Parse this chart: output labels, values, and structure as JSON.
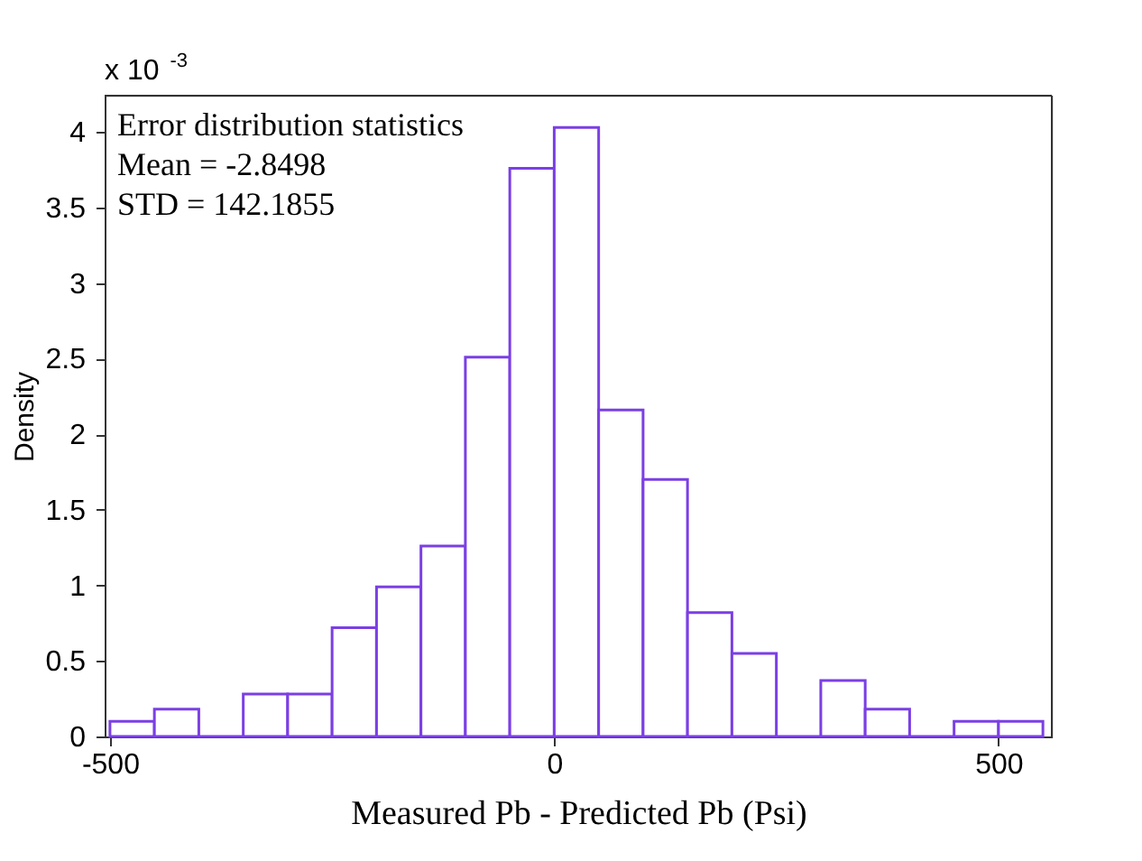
{
  "chart_data": {
    "type": "histogram",
    "xlabel": "Measured Pb - Predicted Pb (Psi)",
    "ylabel": "Density",
    "bins": [
      -500,
      -450,
      -400,
      -350,
      -300,
      -250,
      -200,
      -150,
      -100,
      -50,
      0,
      50,
      100,
      150,
      200,
      250,
      300,
      350,
      400,
      450,
      500,
      550
    ],
    "values": [
      0.1,
      0.18,
      0,
      0.28,
      0.28,
      0.72,
      0.99,
      1.26,
      2.51,
      3.76,
      4.03,
      2.16,
      1.7,
      0.82,
      0.55,
      0,
      0.37,
      0.18,
      0,
      0.1,
      0.1
    ],
    "color": "#7b3fe4",
    "xlim": [
      -506,
      560
    ],
    "xticks": [
      -500,
      0,
      500
    ],
    "ylim": [
      0,
      4.24
    ],
    "yticks": [
      0,
      0.5,
      1,
      1.5,
      2,
      2.5,
      3,
      3.5,
      4
    ],
    "annotations": [
      "x 10$^{-3}$",
      "Error distribution statistics",
      "Mean = -2.8498",
      "STD = 142.1855"
    ],
    "grid": false
  }
}
